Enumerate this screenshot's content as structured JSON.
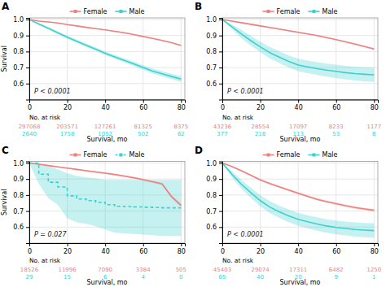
{
  "chart_data": [
    {
      "type": "line",
      "title": "A",
      "annotations": [
        "P < 0.0001"
      ],
      "ylabel": "Survival",
      "xlabel": "Survival, mo",
      "xlim": [
        0,
        82
      ],
      "xticks": [
        0,
        20,
        40,
        60,
        80
      ],
      "ylim": [
        0.5,
        1.01
      ],
      "yticks": [
        0.6,
        0.7,
        0.8,
        0.9,
        {
          "value": 1.0,
          "label": "1.0"
        }
      ],
      "grid": true,
      "legend": "top",
      "x": [
        0,
        5,
        10,
        15,
        20,
        25,
        30,
        35,
        40,
        45,
        50,
        55,
        60,
        65,
        70,
        75,
        80
      ],
      "series": [
        {
          "name": "Female",
          "color": "#F08080",
          "values": [
            1.0,
            0.99,
            0.985,
            0.978,
            0.968,
            0.96,
            0.951,
            0.943,
            0.935,
            0.926,
            0.917,
            0.906,
            0.894,
            0.882,
            0.869,
            0.855,
            0.838
          ],
          "ci_lower": [
            1.0,
            0.989,
            0.983,
            0.976,
            0.965,
            0.958,
            0.948,
            0.94,
            0.932,
            0.923,
            0.914,
            0.903,
            0.891,
            0.879,
            0.865,
            0.852,
            0.834
          ],
          "ci_upper": [
            1.0,
            0.991,
            0.987,
            0.98,
            0.971,
            0.962,
            0.954,
            0.946,
            0.938,
            0.929,
            0.92,
            0.909,
            0.897,
            0.885,
            0.873,
            0.858,
            0.842
          ],
          "at_risk": [
            297068,
            203571,
            127261,
            81325,
            8375
          ]
        },
        {
          "name": "Male",
          "color": "#3ECFCF",
          "values": [
            1.0,
            0.972,
            0.945,
            0.917,
            0.889,
            0.864,
            0.839,
            0.815,
            0.789,
            0.767,
            0.745,
            0.723,
            0.7,
            0.678,
            0.661,
            0.644,
            0.628
          ],
          "ci_lower": [
            1.0,
            0.966,
            0.938,
            0.909,
            0.88,
            0.854,
            0.828,
            0.804,
            0.778,
            0.755,
            0.732,
            0.709,
            0.685,
            0.662,
            0.644,
            0.627,
            0.609
          ],
          "ci_upper": [
            1.0,
            0.978,
            0.952,
            0.925,
            0.898,
            0.874,
            0.85,
            0.826,
            0.8,
            0.779,
            0.758,
            0.737,
            0.715,
            0.694,
            0.678,
            0.661,
            0.647
          ],
          "at_risk": [
            2640,
            1758,
            1052,
            502,
            62
          ]
        }
      ],
      "risk_label": "No. at risk",
      "risk_x": [
        0,
        20,
        40,
        60,
        80
      ]
    },
    {
      "type": "line",
      "title": "B",
      "annotations": [
        "P < 0.0001"
      ],
      "xlabel": "Survival, mo",
      "xlim": [
        0,
        82
      ],
      "xticks": [
        0,
        20,
        40,
        60,
        80
      ],
      "ylim": [
        0.5,
        1.01
      ],
      "yticks": [
        0.6,
        0.7,
        0.8,
        0.9,
        {
          "value": 1.0,
          "label": "1.0"
        }
      ],
      "grid": true,
      "legend": "top",
      "x": [
        0,
        5,
        10,
        15,
        20,
        25,
        30,
        35,
        40,
        45,
        50,
        55,
        60,
        65,
        70,
        75,
        80
      ],
      "series": [
        {
          "name": "Female",
          "color": "#F08080",
          "values": [
            1.0,
            0.99,
            0.98,
            0.97,
            0.96,
            0.95,
            0.94,
            0.93,
            0.92,
            0.91,
            0.9,
            0.887,
            0.874,
            0.86,
            0.846,
            0.831,
            0.816
          ],
          "ci_lower": [
            1.0,
            0.987,
            0.977,
            0.966,
            0.956,
            0.946,
            0.936,
            0.926,
            0.916,
            0.906,
            0.896,
            0.883,
            0.87,
            0.856,
            0.841,
            0.826,
            0.811
          ],
          "ci_upper": [
            1.0,
            0.993,
            0.983,
            0.974,
            0.964,
            0.954,
            0.944,
            0.934,
            0.924,
            0.914,
            0.904,
            0.891,
            0.878,
            0.864,
            0.851,
            0.836,
            0.821
          ],
          "at_risk": [
            43236,
            28554,
            17097,
            8233,
            1177
          ]
        },
        {
          "name": "Male",
          "color": "#3ECFCF",
          "values": [
            1.0,
            0.955,
            0.91,
            0.868,
            0.829,
            0.793,
            0.765,
            0.738,
            0.716,
            0.704,
            0.693,
            0.684,
            0.676,
            0.668,
            0.662,
            0.658,
            0.655
          ],
          "ci_lower": [
            1.0,
            0.94,
            0.885,
            0.838,
            0.796,
            0.758,
            0.728,
            0.701,
            0.677,
            0.665,
            0.653,
            0.643,
            0.634,
            0.626,
            0.619,
            0.614,
            0.61
          ],
          "ci_upper": [
            1.0,
            0.97,
            0.935,
            0.898,
            0.862,
            0.828,
            0.802,
            0.775,
            0.755,
            0.743,
            0.733,
            0.725,
            0.718,
            0.71,
            0.705,
            0.702,
            0.7
          ],
          "at_risk": [
            377,
            218,
            113,
            53,
            8
          ]
        }
      ],
      "risk_label": "No. at risk",
      "risk_x": [
        0,
        20,
        40,
        60,
        80
      ]
    },
    {
      "type": "line",
      "title": "C",
      "annotations": [
        "P = 0.027"
      ],
      "ylabel": "Survival",
      "xlabel": "Survival, mo",
      "xlim": [
        0,
        82
      ],
      "xticks": [
        0,
        20,
        40,
        60,
        80
      ],
      "ylim": [
        0.5,
        1.01
      ],
      "yticks": [
        0.6,
        0.7,
        0.8,
        0.9,
        {
          "value": 1.0,
          "label": "1.0"
        }
      ],
      "grid": true,
      "legend": "top",
      "x": [
        0,
        5,
        10,
        15,
        20,
        25,
        30,
        35,
        40,
        45,
        50,
        55,
        60,
        65,
        70,
        75,
        80
      ],
      "series": [
        {
          "name": "Female",
          "color": "#F08080",
          "values": [
            1.0,
            0.992,
            0.984,
            0.976,
            0.968,
            0.96,
            0.952,
            0.944,
            0.936,
            0.928,
            0.919,
            0.908,
            0.896,
            0.883,
            0.869,
            0.79,
            0.735
          ],
          "ci_lower": [
            1.0,
            0.989,
            0.98,
            0.972,
            0.964,
            0.956,
            0.947,
            0.939,
            0.931,
            0.923,
            0.914,
            0.903,
            0.89,
            0.877,
            0.862,
            0.78,
            0.724
          ],
          "ci_upper": [
            1.0,
            0.995,
            0.988,
            0.98,
            0.972,
            0.964,
            0.957,
            0.949,
            0.941,
            0.933,
            0.924,
            0.913,
            0.902,
            0.889,
            0.876,
            0.8,
            0.746
          ],
          "at_risk": [
            18526,
            11996,
            7090,
            3384,
            505
          ]
        },
        {
          "name": "Male",
          "color": "#3ECFCF",
          "type": "step",
          "line_style": "dashed",
          "values": [
            1.0,
            0.93,
            0.88,
            0.85,
            0.795,
            0.775,
            0.765,
            0.755,
            0.74,
            0.73,
            0.728,
            0.726,
            0.724,
            0.722,
            0.72,
            0.72,
            0.72
          ],
          "ci_lower": [
            1.0,
            0.87,
            0.78,
            0.74,
            0.655,
            0.63,
            0.62,
            0.605,
            0.585,
            0.565,
            0.561,
            0.557,
            0.553,
            0.549,
            0.545,
            0.545,
            0.545
          ],
          "ci_upper": [
            1.0,
            0.99,
            0.98,
            0.96,
            0.935,
            0.92,
            0.91,
            0.905,
            0.895,
            0.895,
            0.895,
            0.895,
            0.895,
            0.895,
            0.895,
            0.895,
            0.895
          ],
          "at_risk": [
            29,
            15,
            6,
            4,
            0
          ]
        }
      ],
      "risk_label": "No. at risk",
      "risk_x": [
        0,
        20,
        40,
        60,
        80
      ]
    },
    {
      "type": "line",
      "title": "D",
      "annotations": [
        "P < 0.0001"
      ],
      "xlabel": "Survival, mo",
      "xlim": [
        0,
        82
      ],
      "xticks": [
        0,
        20,
        40,
        60,
        80
      ],
      "ylim": [
        0.5,
        1.01
      ],
      "yticks": [
        0.6,
        0.7,
        0.8,
        0.9,
        {
          "value": 1.0,
          "label": "1.0"
        }
      ],
      "grid": true,
      "legend": "top",
      "x": [
        0,
        5,
        10,
        15,
        20,
        25,
        30,
        35,
        40,
        45,
        50,
        55,
        60,
        65,
        70,
        75,
        80
      ],
      "series": [
        {
          "name": "Female",
          "color": "#F08080",
          "values": [
            1.0,
            0.978,
            0.952,
            0.924,
            0.895,
            0.872,
            0.851,
            0.831,
            0.811,
            0.792,
            0.773,
            0.759,
            0.746,
            0.733,
            0.722,
            0.713,
            0.705
          ],
          "ci_lower": [
            1.0,
            0.974,
            0.947,
            0.919,
            0.889,
            0.866,
            0.845,
            0.825,
            0.804,
            0.785,
            0.766,
            0.752,
            0.739,
            0.726,
            0.715,
            0.706,
            0.697
          ],
          "ci_upper": [
            1.0,
            0.982,
            0.957,
            0.929,
            0.901,
            0.878,
            0.857,
            0.837,
            0.818,
            0.799,
            0.78,
            0.766,
            0.753,
            0.74,
            0.729,
            0.72,
            0.713
          ],
          "at_risk": [
            45403,
            29074,
            17311,
            6482,
            1250
          ]
        },
        {
          "name": "Male",
          "color": "#3ECFCF",
          "values": [
            1.0,
            0.93,
            0.868,
            0.815,
            0.765,
            0.725,
            0.695,
            0.67,
            0.648,
            0.633,
            0.619,
            0.607,
            0.598,
            0.591,
            0.585,
            0.581,
            0.578
          ],
          "ci_lower": [
            1.0,
            0.91,
            0.841,
            0.782,
            0.73,
            0.688,
            0.657,
            0.631,
            0.608,
            0.592,
            0.577,
            0.565,
            0.555,
            0.548,
            0.541,
            0.537,
            0.533
          ],
          "ci_upper": [
            1.0,
            0.95,
            0.895,
            0.848,
            0.8,
            0.762,
            0.733,
            0.709,
            0.688,
            0.674,
            0.661,
            0.649,
            0.641,
            0.634,
            0.629,
            0.625,
            0.623
          ],
          "at_risk": [
            65,
            40,
            20,
            9,
            1
          ]
        }
      ],
      "risk_label": "No. at risk",
      "risk_x": [
        0,
        20,
        40,
        60,
        80
      ]
    }
  ]
}
